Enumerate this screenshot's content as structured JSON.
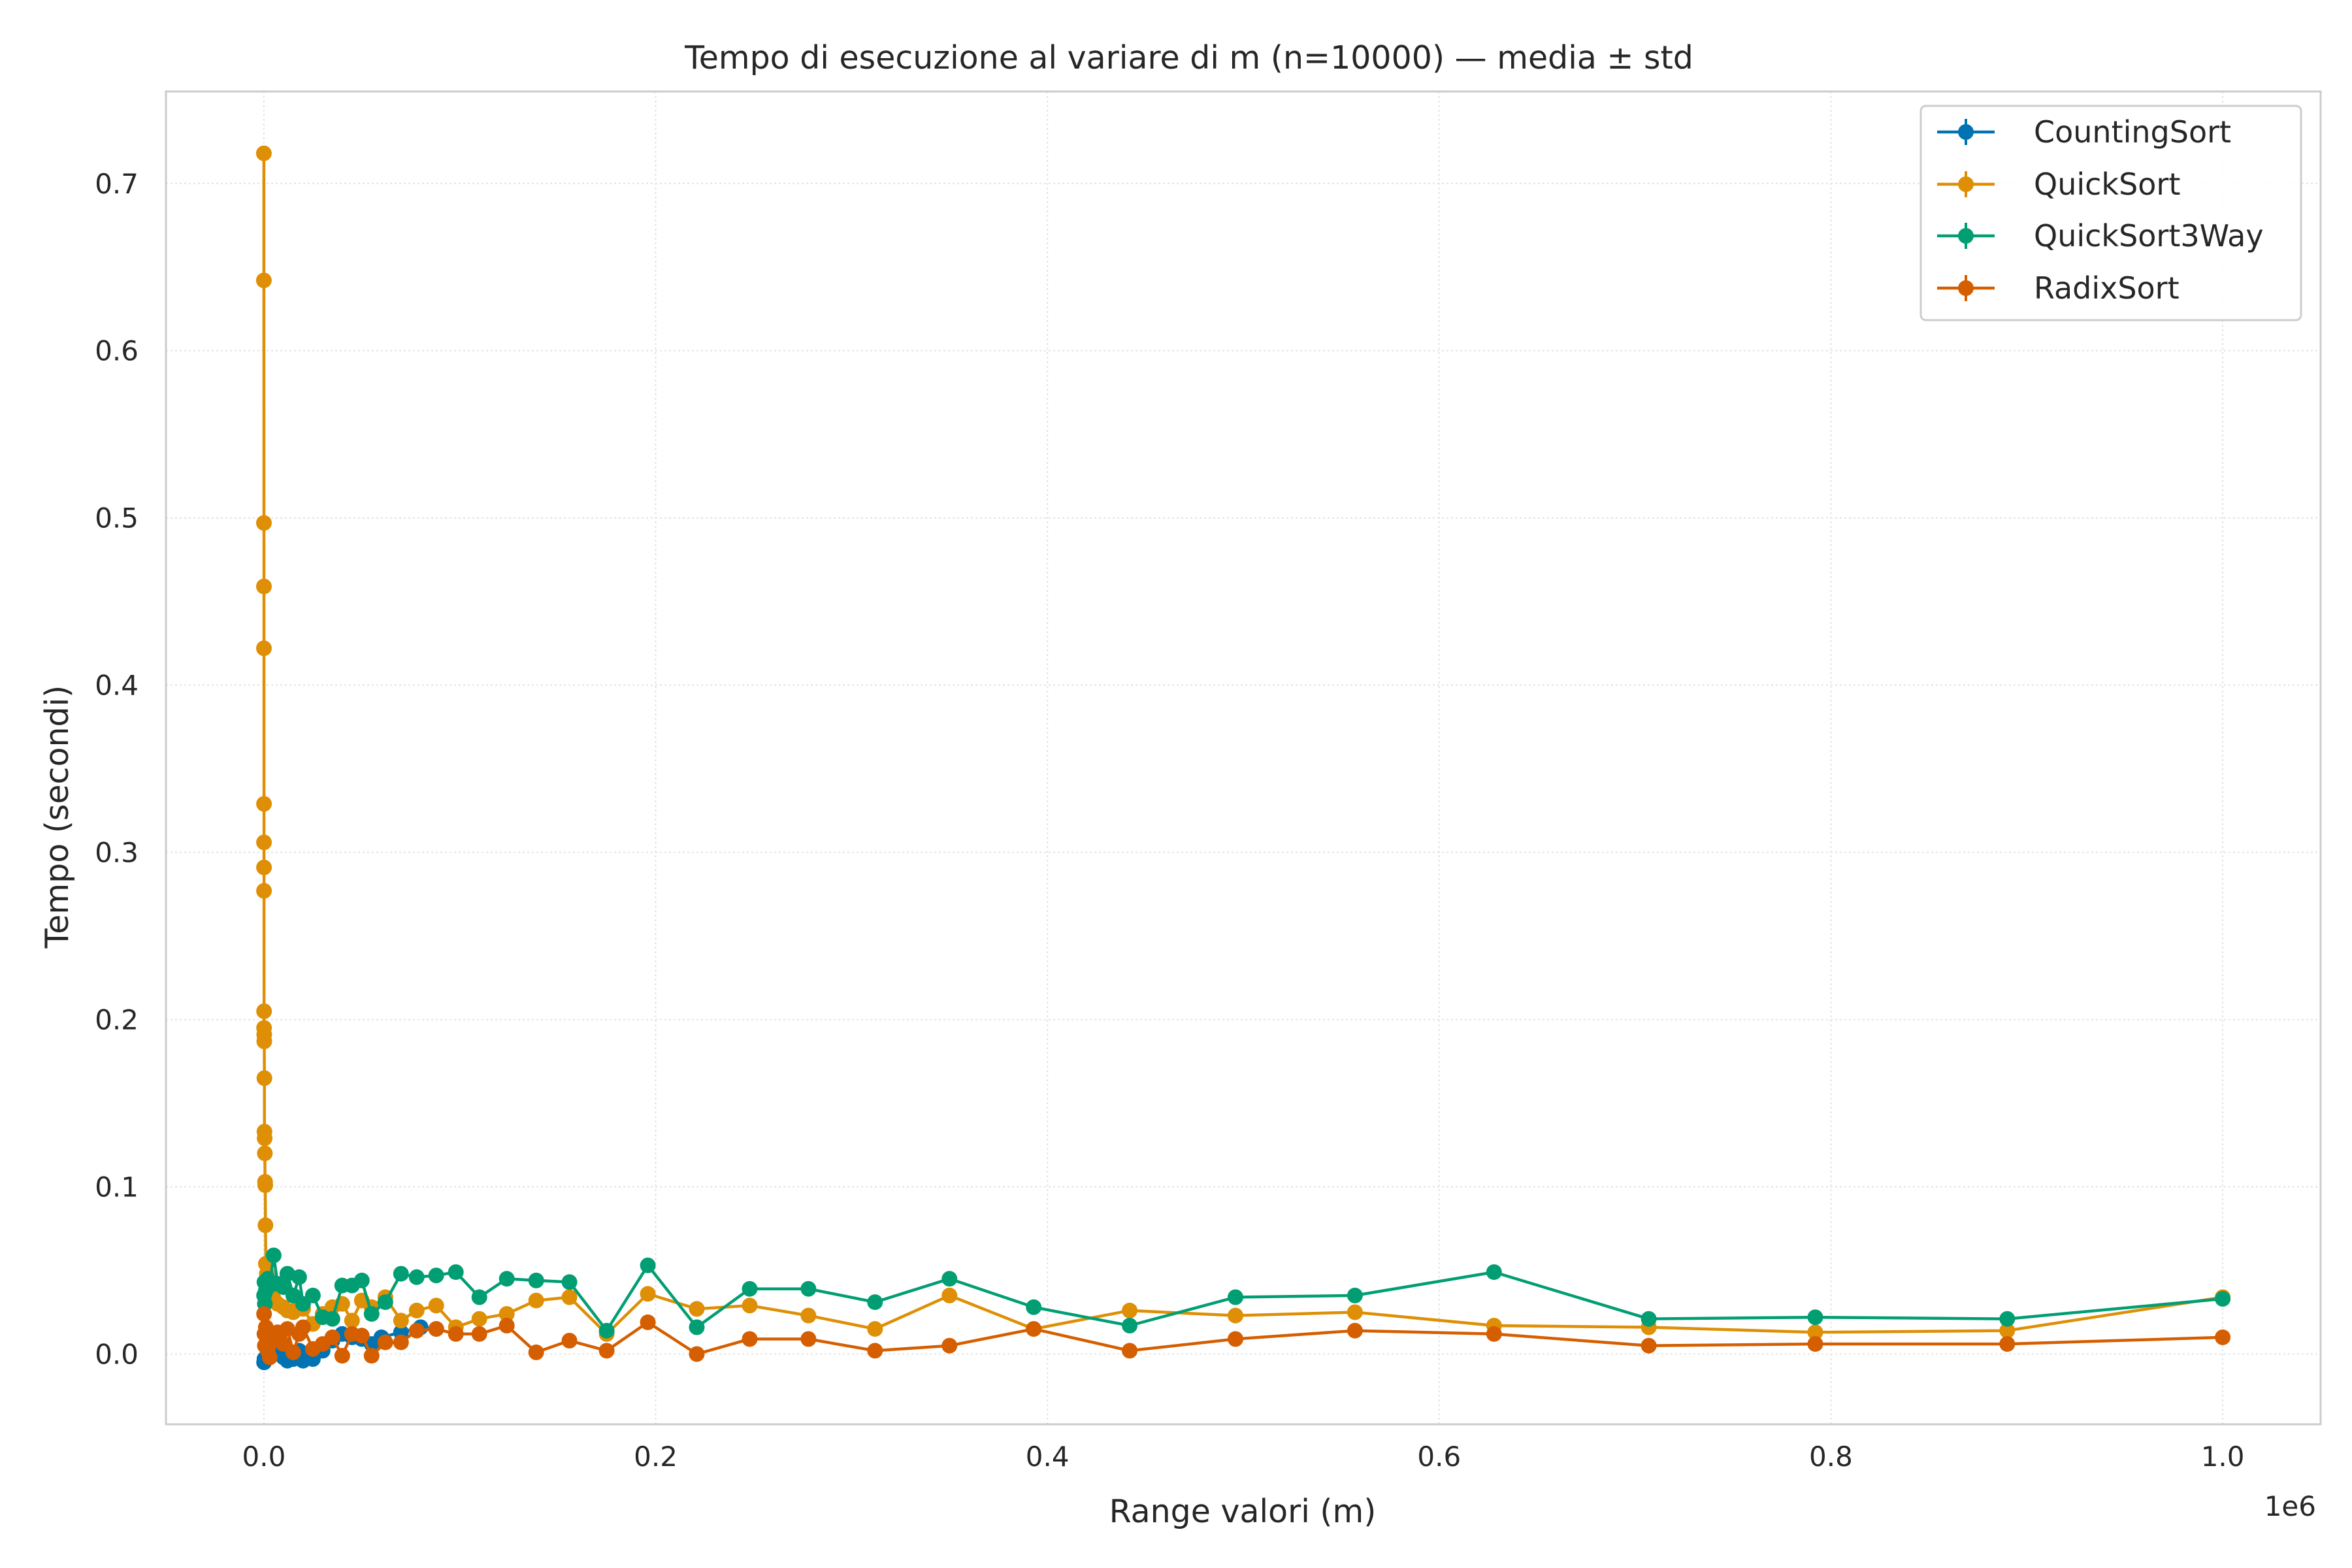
{
  "chart_data": {
    "type": "line",
    "title": "Tempo di esecuzione al variare di m (n=10000) — media ± std",
    "xlabel": "Range valori (m)",
    "ylabel": "Tempo (secondi)",
    "x_offset_label": "1e6",
    "xlim": [
      -50000,
      1050000
    ],
    "ylim": [
      -0.042,
      0.755
    ],
    "x_ticks": [
      0,
      200000,
      400000,
      600000,
      800000,
      1000000
    ],
    "x_tick_labels": [
      "0.0",
      "0.2",
      "0.4",
      "0.6",
      "0.8",
      "1.0"
    ],
    "y_ticks": [
      0.0,
      0.1,
      0.2,
      0.3,
      0.4,
      0.5,
      0.6,
      0.7
    ],
    "y_tick_labels": [
      "0.0",
      "0.1",
      "0.2",
      "0.3",
      "0.4",
      "0.5",
      "0.6",
      "0.7"
    ],
    "grid": true,
    "legend_position": "top-right",
    "series": [
      {
        "name": "CountingSort",
        "color": "#0173b2",
        "x": [
          100,
          300,
          500,
          1000,
          2000,
          3000,
          5000,
          7000,
          10000,
          12000,
          15000,
          18000,
          20000,
          25000,
          30000,
          35000,
          40000,
          45000,
          50000,
          55000,
          60000,
          70000,
          80000,
          88000
        ],
        "y": [
          -0.005,
          -0.003,
          -0.004,
          -0.002,
          0.001,
          0.003,
          0.005,
          0.002,
          -0.002,
          -0.004,
          -0.003,
          0.002,
          -0.004,
          -0.003,
          0.002,
          0.008,
          0.012,
          0.01,
          0.009,
          0.006,
          0.01,
          0.013,
          0.016,
          0.015
        ]
      },
      {
        "name": "QuickSort",
        "color": "#de8f05",
        "x": [
          0,
          10,
          20,
          30,
          40,
          50,
          60,
          70,
          80,
          90,
          100,
          150,
          200,
          250,
          300,
          400,
          500,
          600,
          700,
          800,
          1000,
          1500,
          2000,
          3000,
          5000,
          7000,
          10000,
          12000,
          15000,
          18000,
          20000,
          25000,
          30000,
          35000,
          40000,
          45000,
          50000,
          55000,
          62000,
          70000,
          78000,
          88000,
          98000,
          110000,
          124000,
          139000,
          156000,
          175000,
          196000,
          221000,
          248000,
          278000,
          312000,
          350000,
          393000,
          442000,
          496000,
          557000,
          628000,
          707000,
          792000,
          890000,
          1000000
        ],
        "y": [
          0.718,
          0.642,
          0.497,
          0.459,
          0.422,
          0.329,
          0.306,
          0.291,
          0.277,
          0.205,
          0.195,
          0.191,
          0.187,
          0.165,
          0.133,
          0.129,
          0.12,
          0.103,
          0.101,
          0.077,
          0.054,
          0.048,
          0.043,
          0.039,
          0.033,
          0.03,
          0.028,
          0.026,
          0.025,
          0.03,
          0.027,
          0.018,
          0.024,
          0.028,
          0.03,
          0.02,
          0.032,
          0.028,
          0.034,
          0.02,
          0.026,
          0.029,
          0.016,
          0.021,
          0.024,
          0.032,
          0.034,
          0.012,
          0.036,
          0.027,
          0.029,
          0.023,
          0.015,
          0.035,
          0.015,
          0.026,
          0.023,
          0.025,
          0.017,
          0.016,
          0.013,
          0.014,
          0.034
        ]
      },
      {
        "name": "QuickSort3Way",
        "color": "#029e73",
        "x": [
          100,
          300,
          500,
          1000,
          2000,
          3000,
          5000,
          7000,
          10000,
          12000,
          15000,
          18000,
          20000,
          25000,
          30000,
          35000,
          40000,
          45000,
          50000,
          55000,
          62000,
          70000,
          78000,
          88000,
          98000,
          110000,
          124000,
          139000,
          156000,
          175000,
          196000,
          221000,
          248000,
          278000,
          312000,
          350000,
          393000,
          442000,
          496000,
          557000,
          628000,
          707000,
          792000,
          890000,
          1000000
        ],
        "y": [
          0.035,
          0.043,
          0.03,
          0.038,
          0.045,
          0.041,
          0.059,
          0.042,
          0.04,
          0.048,
          0.035,
          0.046,
          0.03,
          0.035,
          0.022,
          0.021,
          0.041,
          0.041,
          0.044,
          0.024,
          0.031,
          0.048,
          0.046,
          0.047,
          0.049,
          0.034,
          0.045,
          0.044,
          0.043,
          0.014,
          0.053,
          0.016,
          0.039,
          0.039,
          0.031,
          0.045,
          0.028,
          0.017,
          0.034,
          0.035,
          0.049,
          0.021,
          0.022,
          0.021,
          0.033
        ]
      },
      {
        "name": "RadixSort",
        "color": "#d55e00",
        "x": [
          100,
          300,
          500,
          1000,
          2000,
          3000,
          5000,
          7000,
          10000,
          12000,
          15000,
          18000,
          20000,
          25000,
          30000,
          35000,
          40000,
          45000,
          50000,
          55000,
          62000,
          70000,
          78000,
          88000,
          98000,
          110000,
          124000,
          139000,
          156000,
          175000,
          196000,
          221000,
          248000,
          278000,
          312000,
          350000,
          393000,
          442000,
          496000,
          557000,
          628000,
          707000,
          792000,
          890000,
          1000000
        ],
        "y": [
          0.024,
          0.012,
          0.005,
          0.016,
          0.002,
          -0.002,
          0.008,
          0.013,
          0.006,
          0.015,
          0.001,
          0.012,
          0.016,
          0.003,
          0.006,
          0.01,
          -0.001,
          0.012,
          0.011,
          -0.001,
          0.007,
          0.007,
          0.014,
          0.015,
          0.012,
          0.012,
          0.017,
          0.001,
          0.008,
          0.002,
          0.019,
          0.0,
          0.009,
          0.009,
          0.002,
          0.005,
          0.015,
          0.002,
          0.009,
          0.014,
          0.012,
          0.005,
          0.006,
          0.006,
          0.01
        ]
      }
    ]
  }
}
